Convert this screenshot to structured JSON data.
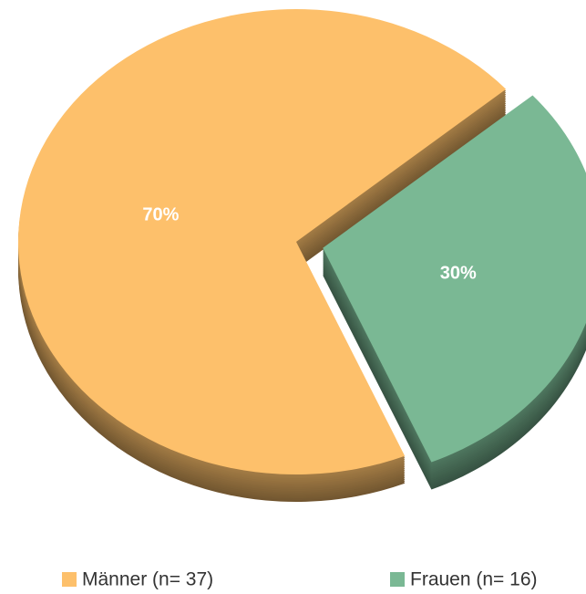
{
  "chart_data": {
    "type": "pie",
    "categories": [
      "Männer (n= 37)",
      "Frauen (n= 16)"
    ],
    "values": [
      70,
      30
    ],
    "value_labels": [
      "70%",
      "30%"
    ],
    "colors": [
      "#fdc06b",
      "#7ab894"
    ],
    "exploded": [
      false,
      true
    ],
    "legend": "bottom"
  }
}
